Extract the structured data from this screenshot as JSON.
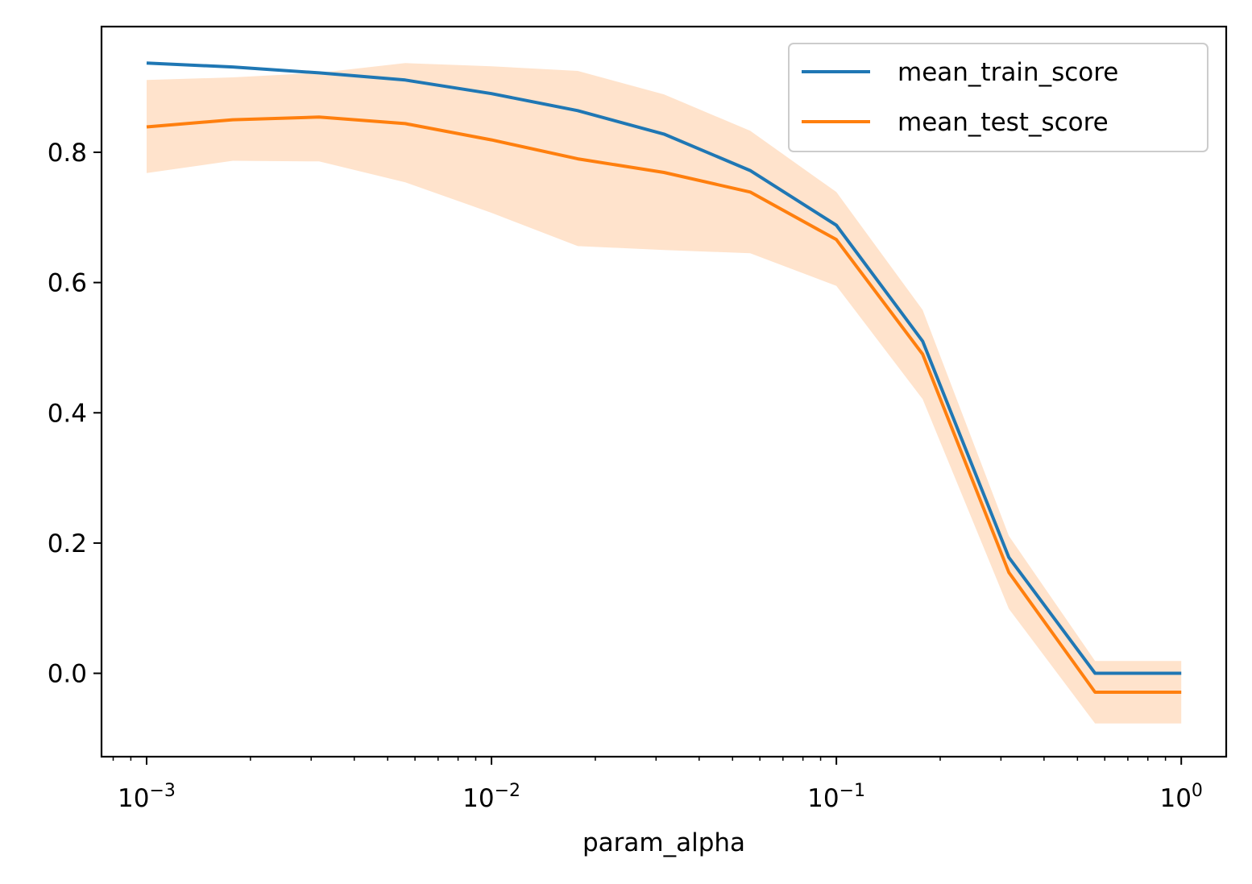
{
  "chart_data": {
    "type": "line",
    "xscale": "log",
    "x": [
      0.001,
      0.0017783,
      0.0031623,
      0.0056234,
      0.01,
      0.017783,
      0.031623,
      0.056234,
      0.1,
      0.17783,
      0.31623,
      0.56234,
      1.0
    ],
    "series": [
      {
        "name": "mean_train_score",
        "color": "#1f77b4",
        "values": [
          0.937,
          0.931,
          0.922,
          0.911,
          0.89,
          0.864,
          0.828,
          0.772,
          0.688,
          0.51,
          0.178,
          0.0,
          0.0
        ],
        "band_lower": [
          0.935,
          0.929,
          0.92,
          0.908,
          0.887,
          0.861,
          0.822,
          0.764,
          0.682,
          0.505,
          0.172,
          -0.002,
          -0.002
        ],
        "band_upper": [
          0.939,
          0.933,
          0.924,
          0.914,
          0.893,
          0.867,
          0.834,
          0.78,
          0.694,
          0.515,
          0.184,
          0.002,
          0.002
        ]
      },
      {
        "name": "mean_test_score",
        "color": "#ff7f0e",
        "band_color": "#ffe3cc",
        "values": [
          0.839,
          0.85,
          0.854,
          0.844,
          0.819,
          0.79,
          0.769,
          0.739,
          0.666,
          0.49,
          0.155,
          -0.029,
          -0.029
        ],
        "band_lower": [
          0.768,
          0.787,
          0.786,
          0.754,
          0.707,
          0.656,
          0.65,
          0.645,
          0.595,
          0.421,
          0.099,
          -0.077,
          -0.077
        ],
        "band_upper": [
          0.911,
          0.915,
          0.922,
          0.937,
          0.932,
          0.925,
          0.889,
          0.833,
          0.739,
          0.558,
          0.211,
          0.019,
          0.019
        ]
      }
    ],
    "title": "",
    "xlabel": "param_alpha",
    "ylabel": "",
    "xlim": [
      0.00074,
      1.35
    ],
    "ylim": [
      -0.128,
      0.993
    ],
    "yticks": [
      0.0,
      0.2,
      0.4,
      0.6,
      0.8
    ],
    "ytick_labels": [
      "0.0",
      "0.2",
      "0.4",
      "0.6",
      "0.8"
    ],
    "xticks": [
      {
        "value": 0.001,
        "base": "10",
        "exp": "−3"
      },
      {
        "value": 0.01,
        "base": "10",
        "exp": "−2"
      },
      {
        "value": 0.1,
        "base": "10",
        "exp": "−1"
      },
      {
        "value": 1.0,
        "base": "10",
        "exp": "0"
      }
    ],
    "grid": false,
    "legend_position": "top-right"
  }
}
